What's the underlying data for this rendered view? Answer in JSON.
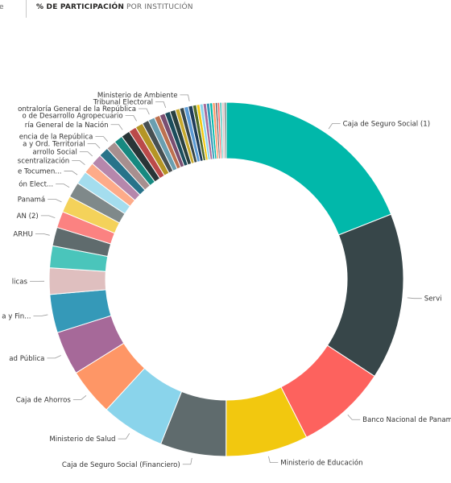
{
  "tabs": [
    {
      "label": "me",
      "active": false
    },
    {
      "label": "% DE PARTICIPACIÓN",
      "active": true
    },
    {
      "label": "POR INSTITUCIÓN",
      "active": false
    }
  ],
  "chart_data": {
    "type": "donut",
    "legend": "outside labels with leader lines",
    "series": [
      {
        "slices": [
          {
            "label": "Caja de Seguro Social (1)",
            "value": 19.0,
            "color": "#01B8AA"
          },
          {
            "label": "Servi",
            "value": 15.2,
            "color": "#374649"
          },
          {
            "label": "Banco Nacional de Panamá",
            "value": 8.3,
            "color": "#FD625E"
          },
          {
            "label": "Ministerio de Educación",
            "value": 7.5,
            "color": "#F2C80F"
          },
          {
            "label": "Caja de Seguro Social (Financiero)",
            "value": 6.0,
            "color": "#5F6B6D"
          },
          {
            "label": "Ministerio de Salud",
            "value": 5.8,
            "color": "#8AD4EB"
          },
          {
            "label": "Caja de Ahorros",
            "value": 4.3,
            "color": "#FE9666"
          },
          {
            "label": "ad Pública",
            "value": 4.0,
            "color": "#A66999"
          },
          {
            "label": "a y Fin...",
            "value": 3.5,
            "color": "#3599B8"
          },
          {
            "label": "licas",
            "value": 2.4,
            "color": "#DFBFBF"
          },
          {
            "label": "",
            "value": 2.0,
            "color": "#4AC5BB"
          },
          {
            "label": "ARHU",
            "value": 1.7,
            "color": "#5F6B6D"
          },
          {
            "label": "AN (2)",
            "value": 1.5,
            "color": "#FB8281"
          },
          {
            "label": "Panamá",
            "value": 1.5,
            "color": "#F4D25A"
          },
          {
            "label": "ón Elect...",
            "value": 1.4,
            "color": "#7F898A"
          },
          {
            "label": "e Tocumen...",
            "value": 1.2,
            "color": "#A4DDEE"
          },
          {
            "label": "scentralización",
            "value": 1.0,
            "color": "#FDAB89"
          },
          {
            "label": "arrollo Social",
            "value": 1.0,
            "color": "#B687AC"
          },
          {
            "label": "a y Ord. Territorial",
            "value": 0.9,
            "color": "#28738A"
          },
          {
            "label": "encia de la República",
            "value": 0.9,
            "color": "#A78F8F"
          },
          {
            "label": "",
            "value": 0.8,
            "color": "#168980"
          },
          {
            "label": "ría General de la Nación",
            "value": 0.8,
            "color": "#293537"
          },
          {
            "label": "",
            "value": 0.7,
            "color": "#BB4A4A"
          },
          {
            "label": "o de Desarrollo Agropecuario",
            "value": 0.7,
            "color": "#B59525"
          },
          {
            "label": "",
            "value": 0.6,
            "color": "#475052"
          },
          {
            "label": "ontraloría General de la República",
            "value": 0.6,
            "color": "#6A9FB0"
          },
          {
            "label": "",
            "value": 0.5,
            "color": "#BD7150"
          },
          {
            "label": "",
            "value": 0.5,
            "color": "#7B4F71"
          },
          {
            "label": "Tribunal Electoral",
            "value": 0.5,
            "color": "#1B4D5C"
          },
          {
            "label": "",
            "value": 0.5,
            "color": "#2A4040"
          },
          {
            "label": "",
            "value": 0.4,
            "color": "#C8AA2E"
          },
          {
            "label": "",
            "value": 0.4,
            "color": "#374649"
          },
          {
            "label": "",
            "value": 0.4,
            "color": "#5B9BD5"
          },
          {
            "label": "Ministerio de Ambiente",
            "value": 0.4,
            "color": "#1E3C5A"
          },
          {
            "label": "",
            "value": 0.35,
            "color": "#4E6B2D"
          },
          {
            "label": "",
            "value": 0.3,
            "color": "#F2C80F"
          },
          {
            "label": "",
            "value": 0.3,
            "color": "#8AD4EB"
          },
          {
            "label": "",
            "value": 0.3,
            "color": "#A66999"
          },
          {
            "label": "",
            "value": 0.3,
            "color": "#3599B8"
          },
          {
            "label": "",
            "value": 0.25,
            "color": "#01B8AA"
          },
          {
            "label": "",
            "value": 0.25,
            "color": "#FE9666"
          },
          {
            "label": "",
            "value": 0.2,
            "color": "#5F6B6D"
          },
          {
            "label": "",
            "value": 0.2,
            "color": "#FD625E"
          },
          {
            "label": "",
            "value": 0.2,
            "color": "#4AC5BB"
          },
          {
            "label": "",
            "value": 0.2,
            "color": "#DFBFBF"
          },
          {
            "label": "",
            "value": 0.2,
            "color": "#7F898A"
          }
        ]
      }
    ]
  }
}
